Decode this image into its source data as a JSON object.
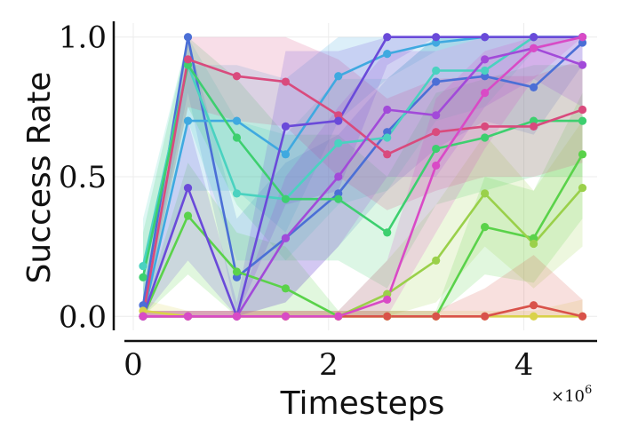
{
  "chart_data": {
    "type": "line",
    "title": "",
    "xlabel": "Timesteps",
    "ylabel": "Success Rate",
    "x_multiplier_label": "×10",
    "x_multiplier_exp": "6",
    "xlim": [
      -0.2,
      4.75
    ],
    "ylim": [
      -0.05,
      1.05
    ],
    "xticks": [
      0,
      2,
      4
    ],
    "xtick_labels": [
      "0",
      "2",
      "4"
    ],
    "yticks": [
      0.0,
      0.5,
      1.0
    ],
    "ytick_labels": [
      "0.0",
      "0.5",
      "1.0"
    ],
    "grid": true,
    "legend": "none",
    "x": [
      0.1,
      0.56,
      1.06,
      1.56,
      2.1,
      2.6,
      3.1,
      3.6,
      4.1,
      4.6
    ],
    "series": [
      {
        "color": "#4b6fd6",
        "values": [
          0.04,
          1.0,
          0.14,
          0.28,
          0.44,
          0.66,
          0.84,
          0.86,
          0.82,
          0.98
        ],
        "lower": [
          0.0,
          0.8,
          0.0,
          0.05,
          0.25,
          0.45,
          0.6,
          0.7,
          0.65,
          0.9
        ],
        "upper": [
          0.1,
          1.0,
          0.35,
          0.55,
          0.65,
          0.85,
          1.0,
          1.0,
          1.0,
          1.0
        ]
      },
      {
        "color": "#3fa9e0",
        "values": [
          0.0,
          0.7,
          0.7,
          0.58,
          0.86,
          0.94,
          0.98,
          1.0,
          1.0,
          1.0
        ],
        "lower": [
          0.0,
          0.45,
          0.45,
          0.3,
          0.7,
          0.85,
          0.95,
          1.0,
          1.0,
          1.0
        ],
        "upper": [
          0.05,
          0.9,
          0.9,
          0.85,
          1.0,
          1.0,
          1.0,
          1.0,
          1.0,
          1.0
        ]
      },
      {
        "color": "#4ad2c0",
        "values": [
          0.18,
          0.9,
          0.44,
          0.42,
          0.62,
          0.64,
          0.88,
          0.88,
          1.0,
          1.0
        ],
        "lower": [
          0.02,
          0.7,
          0.2,
          0.2,
          0.4,
          0.45,
          0.7,
          0.75,
          0.95,
          1.0
        ],
        "upper": [
          0.35,
          1.0,
          0.7,
          0.65,
          0.85,
          0.85,
          1.0,
          1.0,
          1.0,
          1.0
        ]
      },
      {
        "color": "#3dcf6f",
        "values": [
          0.14,
          0.9,
          0.64,
          0.42,
          0.42,
          0.3,
          0.6,
          0.64,
          0.7,
          0.7
        ],
        "lower": [
          0.0,
          0.75,
          0.4,
          0.2,
          0.2,
          0.1,
          0.4,
          0.45,
          0.5,
          0.5
        ],
        "upper": [
          0.3,
          1.0,
          0.85,
          0.65,
          0.65,
          0.5,
          0.8,
          0.85,
          0.9,
          0.9
        ]
      },
      {
        "color": "#5ad24a",
        "values": [
          0.0,
          0.36,
          0.16,
          0.1,
          0.0,
          0.0,
          0.0,
          0.32,
          0.28,
          0.58
        ],
        "lower": [
          0.0,
          0.15,
          0.0,
          0.0,
          0.0,
          0.0,
          0.0,
          0.15,
          0.12,
          0.35
        ],
        "upper": [
          0.02,
          0.55,
          0.3,
          0.25,
          0.02,
          0.02,
          0.02,
          0.5,
          0.45,
          0.8
        ]
      },
      {
        "color": "#9ad04a",
        "values": [
          0.0,
          0.0,
          0.0,
          0.0,
          0.0,
          0.08,
          0.2,
          0.44,
          0.26,
          0.46
        ],
        "lower": [
          0.0,
          0.0,
          0.0,
          0.0,
          0.0,
          0.0,
          0.05,
          0.25,
          0.1,
          0.25
        ],
        "upper": [
          0.02,
          0.02,
          0.02,
          0.02,
          0.02,
          0.2,
          0.4,
          0.65,
          0.45,
          0.7
        ]
      },
      {
        "color": "#d9d24a",
        "values": [
          0.02,
          0.0,
          0.0,
          0.0,
          0.0,
          0.0,
          0.0,
          0.0,
          0.0,
          0.0
        ],
        "lower": [
          0.0,
          0.0,
          0.0,
          0.0,
          0.0,
          0.0,
          0.0,
          0.0,
          0.0,
          0.0
        ],
        "upper": [
          0.06,
          0.02,
          0.02,
          0.02,
          0.02,
          0.02,
          0.02,
          0.02,
          0.02,
          0.06
        ]
      },
      {
        "color": "#d9524a",
        "values": [
          0.0,
          0.0,
          0.0,
          0.0,
          0.0,
          0.0,
          0.0,
          0.0,
          0.04,
          0.0
        ],
        "lower": [
          0.0,
          0.0,
          0.0,
          0.0,
          0.0,
          0.0,
          0.0,
          0.0,
          0.0,
          0.0
        ],
        "upper": [
          0.02,
          0.02,
          0.02,
          0.02,
          0.02,
          0.02,
          0.02,
          0.1,
          0.22,
          0.06
        ]
      },
      {
        "color": "#d94a7d",
        "values": [
          0.0,
          0.92,
          0.86,
          0.84,
          0.72,
          0.58,
          0.66,
          0.68,
          0.68,
          0.74
        ],
        "lower": [
          0.0,
          0.75,
          0.7,
          0.68,
          0.5,
          0.38,
          0.45,
          0.5,
          0.5,
          0.55
        ],
        "upper": [
          0.05,
          1.0,
          1.0,
          1.0,
          0.92,
          0.78,
          0.85,
          0.86,
          0.86,
          0.92
        ]
      },
      {
        "color": "#6a4ad9",
        "values": [
          0.0,
          0.46,
          0.0,
          0.68,
          0.7,
          1.0,
          1.0,
          1.0,
          1.0,
          1.0
        ],
        "lower": [
          0.0,
          0.2,
          0.0,
          0.4,
          0.45,
          0.9,
          1.0,
          1.0,
          1.0,
          1.0
        ],
        "upper": [
          0.02,
          0.7,
          0.05,
          0.95,
          0.95,
          1.0,
          1.0,
          1.0,
          1.0,
          1.0
        ]
      },
      {
        "color": "#a24ad9",
        "values": [
          0.0,
          0.0,
          0.0,
          0.28,
          0.5,
          0.74,
          0.72,
          0.92,
          0.96,
          0.9
        ],
        "lower": [
          0.0,
          0.0,
          0.0,
          0.05,
          0.25,
          0.5,
          0.5,
          0.75,
          0.85,
          0.75
        ],
        "upper": [
          0.02,
          0.02,
          0.02,
          0.5,
          0.75,
          0.95,
          0.95,
          1.0,
          1.0,
          1.0
        ]
      },
      {
        "color": "#d94ac6",
        "values": [
          0.0,
          0.0,
          0.0,
          0.0,
          0.0,
          0.06,
          0.54,
          0.8,
          0.96,
          1.0
        ],
        "lower": [
          0.0,
          0.0,
          0.0,
          0.0,
          0.0,
          0.0,
          0.3,
          0.6,
          0.85,
          1.0
        ],
        "upper": [
          0.02,
          0.02,
          0.02,
          0.02,
          0.02,
          0.2,
          0.78,
          0.95,
          1.0,
          1.0
        ]
      }
    ]
  }
}
